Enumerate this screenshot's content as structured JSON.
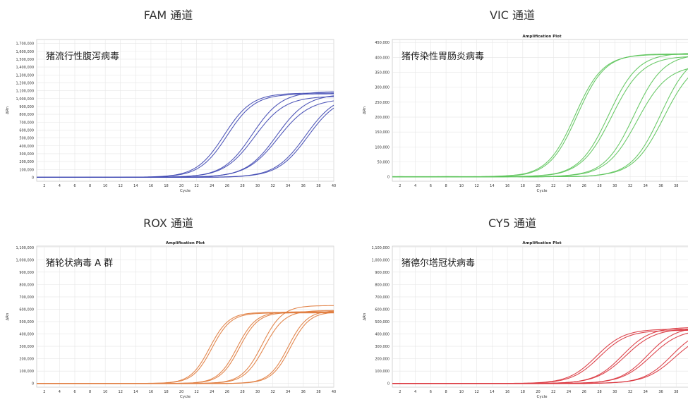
{
  "chart_data": [
    {
      "type": "line",
      "channel_title": "FAM 通道",
      "title": "",
      "annotation": "猪流行性腹泻病毒",
      "xlabel": "Cycle",
      "ylabel": "ΔRn",
      "xlim": [
        1,
        40
      ],
      "ylim": [
        -50000,
        1750000
      ],
      "x_ticks": [
        2,
        4,
        6,
        8,
        10,
        12,
        14,
        16,
        18,
        20,
        22,
        24,
        26,
        28,
        30,
        32,
        34,
        36,
        38,
        40
      ],
      "y_ticks": [
        0,
        100000,
        200000,
        300000,
        400000,
        500000,
        600000,
        700000,
        800000,
        900000,
        1000000,
        1100000,
        1200000,
        1300000,
        1400000,
        1500000,
        1600000,
        1700000
      ],
      "y_tick_labels": [
        "0",
        "100,000",
        "200,000",
        "300,000",
        "400,000",
        "500,000",
        "600,000",
        "700,000",
        "800,000",
        "900,000",
        "1,000,000",
        "1,100,000",
        "1,200,000",
        "1,300,000",
        "1,400,000",
        "1,500,000",
        "1,600,000",
        "1,700,000"
      ],
      "grid": true,
      "color": "#3f48b3",
      "curves": [
        {
          "ct": 25.6,
          "max": 1070000,
          "k": 0.55
        },
        {
          "ct": 26.0,
          "max": 1060000,
          "k": 0.55
        },
        {
          "ct": 29.3,
          "max": 1090000,
          "k": 0.52
        },
        {
          "ct": 29.6,
          "max": 1030000,
          "k": 0.5
        },
        {
          "ct": 32.5,
          "max": 1060000,
          "k": 0.5
        },
        {
          "ct": 32.7,
          "max": 1000000,
          "k": 0.48
        },
        {
          "ct": 36.3,
          "max": 1060000,
          "k": 0.5
        },
        {
          "ct": 36.6,
          "max": 1040000,
          "k": 0.5
        }
      ]
    },
    {
      "type": "line",
      "channel_title": "VIC 通道",
      "title": "Amplification Plot",
      "annotation": "猪传染性胃肠炎病毒",
      "xlabel": "Cycle",
      "ylabel": "ΔRn",
      "xlim": [
        1,
        40
      ],
      "ylim": [
        -15000,
        460000
      ],
      "x_ticks": [
        2,
        4,
        6,
        8,
        10,
        12,
        14,
        16,
        18,
        20,
        22,
        24,
        26,
        28,
        30,
        32,
        34,
        36,
        38,
        40
      ],
      "y_ticks": [
        0,
        50000,
        100000,
        150000,
        200000,
        250000,
        300000,
        350000,
        400000,
        450000
      ],
      "y_tick_labels": [
        "0",
        "50,000",
        "100,000",
        "150,000",
        "200,000",
        "250,000",
        "300,000",
        "350,000",
        "400,000",
        "450,000"
      ],
      "grid": true,
      "color": "#5cc45a",
      "curves": [
        {
          "ct": 24.8,
          "max": 410000,
          "k": 0.55
        },
        {
          "ct": 25.1,
          "max": 412000,
          "k": 0.55
        },
        {
          "ct": 29.2,
          "max": 415000,
          "k": 0.52
        },
        {
          "ct": 29.6,
          "max": 405000,
          "k": 0.5
        },
        {
          "ct": 32.5,
          "max": 412000,
          "k": 0.52
        },
        {
          "ct": 32.9,
          "max": 375000,
          "k": 0.5
        },
        {
          "ct": 36.0,
          "max": 420000,
          "k": 0.52
        },
        {
          "ct": 36.4,
          "max": 400000,
          "k": 0.5
        }
      ]
    },
    {
      "type": "line",
      "channel_title": "ROX 通道",
      "title": "Amplification Plot",
      "annotation": "猪轮状病毒 A 群",
      "xlabel": "Cycle",
      "ylabel": "ΔRn",
      "xlim": [
        1,
        40
      ],
      "ylim": [
        -30000,
        1110000
      ],
      "x_ticks": [
        2,
        4,
        6,
        8,
        10,
        12,
        14,
        16,
        18,
        20,
        22,
        24,
        26,
        28,
        30,
        32,
        34,
        36,
        38,
        40
      ],
      "y_ticks": [
        0,
        100000,
        200000,
        300000,
        400000,
        500000,
        600000,
        700000,
        800000,
        900000,
        1000000,
        1100000
      ],
      "y_tick_labels": [
        "0",
        "100,000",
        "200,000",
        "300,000",
        "400,000",
        "500,000",
        "600,000",
        "700,000",
        "800,000",
        "900,000",
        "1,000,000",
        "1,100,000"
      ],
      "grid": true,
      "color": "#e07b3c",
      "curves": [
        {
          "ct": 23.7,
          "max": 575000,
          "k": 0.8
        },
        {
          "ct": 24.0,
          "max": 570000,
          "k": 0.8
        },
        {
          "ct": 27.3,
          "max": 580000,
          "k": 0.8
        },
        {
          "ct": 27.6,
          "max": 575000,
          "k": 0.8
        },
        {
          "ct": 30.6,
          "max": 630000,
          "k": 0.75
        },
        {
          "ct": 30.9,
          "max": 590000,
          "k": 0.75
        },
        {
          "ct": 34.0,
          "max": 590000,
          "k": 0.8
        },
        {
          "ct": 34.3,
          "max": 580000,
          "k": 0.8
        }
      ]
    },
    {
      "type": "line",
      "channel_title": "CY5 通道",
      "title": "Amplification Plot",
      "annotation": "猪德尔塔冠状病毒",
      "xlabel": "Cycle",
      "ylabel": "ΔRn",
      "xlim": [
        1,
        40
      ],
      "ylim": [
        -30000,
        1110000
      ],
      "x_ticks": [
        2,
        4,
        6,
        8,
        10,
        12,
        14,
        16,
        18,
        20,
        22,
        24,
        26,
        28,
        30,
        32,
        34,
        36,
        38,
        40
      ],
      "y_ticks": [
        0,
        100000,
        200000,
        300000,
        400000,
        500000,
        600000,
        700000,
        800000,
        900000,
        1000000,
        1100000
      ],
      "y_tick_labels": [
        "0",
        "100,000",
        "200,000",
        "300,000",
        "400,000",
        "500,000",
        "600,000",
        "700,000",
        "800,000",
        "900,000",
        "1,000,000",
        "1,100,000"
      ],
      "grid": true,
      "color": "#d9323b",
      "curves": [
        {
          "ct": 27.6,
          "max": 440000,
          "k": 0.55
        },
        {
          "ct": 28.0,
          "max": 430000,
          "k": 0.55
        },
        {
          "ct": 31.0,
          "max": 455000,
          "k": 0.55
        },
        {
          "ct": 31.4,
          "max": 445000,
          "k": 0.52
        },
        {
          "ct": 34.3,
          "max": 460000,
          "k": 0.55
        },
        {
          "ct": 34.7,
          "max": 440000,
          "k": 0.52
        },
        {
          "ct": 37.4,
          "max": 450000,
          "k": 0.55
        },
        {
          "ct": 37.8,
          "max": 420000,
          "k": 0.52
        }
      ]
    }
  ]
}
